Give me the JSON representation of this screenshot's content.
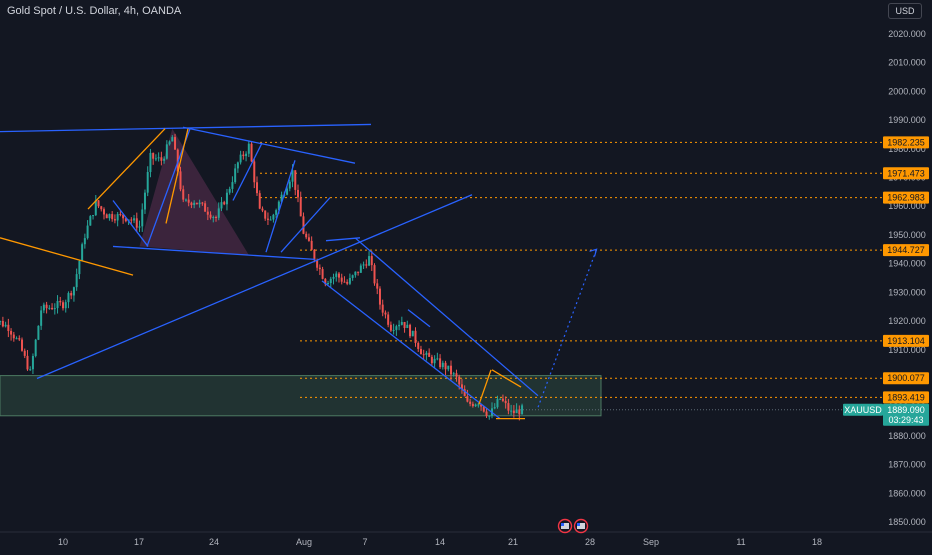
{
  "header": {
    "symbol_title": "Gold Spot / U.S. Dollar, 4h, OANDA",
    "currency_button": "USD"
  },
  "colors": {
    "background": "#131722",
    "bull": "#26a69a",
    "bear": "#ef5350",
    "trendline_blue": "#2962ff",
    "pattern_orange": "#ff9800",
    "zone_fill": "#2e4b3f",
    "triangle_fill": "#4a2a45"
  },
  "chart_data": {
    "type": "candlestick",
    "symbol": "XAUUSD",
    "ylim": [
      1845,
      2032
    ],
    "y_ticks": [
      "2020.000",
      "2010.000",
      "2000.000",
      "1990.000",
      "1980.000",
      "1970.000",
      "1960.000",
      "1950.000",
      "1940.000",
      "1930.000",
      "1920.000",
      "1910.000",
      "1900.000",
      "1890.000",
      "1880.000",
      "1870.000",
      "1860.000",
      "1850.000"
    ],
    "x_ticks": [
      "10",
      "17",
      "24",
      "Aug",
      "7",
      "14",
      "21",
      "28",
      "Sep",
      "11",
      "18"
    ],
    "price_levels": [
      {
        "value": "1982.235",
        "style": "orange"
      },
      {
        "value": "1971.473",
        "style": "orange"
      },
      {
        "value": "1962.983",
        "style": "orange"
      },
      {
        "value": "1944.727",
        "style": "orange"
      },
      {
        "value": "1913.104",
        "style": "orange"
      },
      {
        "value": "1900.077",
        "style": "orange"
      },
      {
        "value": "1893.419",
        "style": "orange"
      }
    ],
    "last_price": {
      "symbol": "XAUUSD",
      "value": "1889.090",
      "countdown": "03:29:43"
    },
    "price_path": [
      {
        "date": "Jul 3",
        "price": 1922
      },
      {
        "date": "Jul 5",
        "price": 1918
      },
      {
        "date": "Jul 6",
        "price": 1912
      },
      {
        "date": "Jul 7",
        "price": 1902
      },
      {
        "date": "Jul 8",
        "price": 1924
      },
      {
        "date": "Jul 10",
        "price": 1926
      },
      {
        "date": "Jul 11",
        "price": 1932
      },
      {
        "date": "Jul 12",
        "price": 1950
      },
      {
        "date": "Jul 13",
        "price": 1961
      },
      {
        "date": "Jul 14",
        "price": 1957
      },
      {
        "date": "Jul 16",
        "price": 1956
      },
      {
        "date": "Jul 17",
        "price": 1953
      },
      {
        "date": "Jul 18",
        "price": 1977
      },
      {
        "date": "Jul 19",
        "price": 1976
      },
      {
        "date": "Jul 20",
        "price": 1984
      },
      {
        "date": "Jul 21",
        "price": 1961
      },
      {
        "date": "Jul 22",
        "price": 1962
      },
      {
        "date": "Jul 24",
        "price": 1956
      },
      {
        "date": "Jul 25",
        "price": 1964
      },
      {
        "date": "Jul 26",
        "price": 1975
      },
      {
        "date": "Jul 27",
        "price": 1981
      },
      {
        "date": "Jul 28",
        "price": 1958
      },
      {
        "date": "Jul 29",
        "price": 1955
      },
      {
        "date": "Jul 31",
        "price": 1972
      },
      {
        "date": "Aug 1",
        "price": 1951
      },
      {
        "date": "Aug 2",
        "price": 1942
      },
      {
        "date": "Aug 3",
        "price": 1934
      },
      {
        "date": "Aug 4",
        "price": 1936
      },
      {
        "date": "Aug 5",
        "price": 1933
      },
      {
        "date": "Aug 7",
        "price": 1942
      },
      {
        "date": "Aug 8",
        "price": 1926
      },
      {
        "date": "Aug 9",
        "price": 1918
      },
      {
        "date": "Aug 10",
        "price": 1920
      },
      {
        "date": "Aug 11",
        "price": 1915
      },
      {
        "date": "Aug 12",
        "price": 1908
      },
      {
        "date": "Aug 14",
        "price": 1904
      },
      {
        "date": "Aug 15",
        "price": 1900
      },
      {
        "date": "Aug 16",
        "price": 1891
      },
      {
        "date": "Aug 17",
        "price": 1892
      },
      {
        "date": "Aug 18",
        "price": 1887
      },
      {
        "date": "Aug 19",
        "price": 1893
      },
      {
        "date": "Aug 20",
        "price": 1888
      },
      {
        "date": "Aug 21",
        "price": 1889.09
      }
    ],
    "projection": [
      {
        "date": "Aug 21",
        "price": 1890
      },
      {
        "date": "Aug 28",
        "price": 1945
      }
    ],
    "support_zone": [
      1887,
      1901
    ]
  }
}
